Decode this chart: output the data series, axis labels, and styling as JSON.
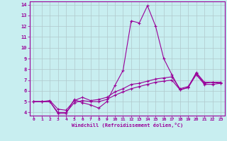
{
  "xlabel": "Windchill (Refroidissement éolien,°C)",
  "background_color": "#c8eef0",
  "line_color": "#990099",
  "grid_color": "#b0c8cc",
  "xlim": [
    -0.5,
    23.5
  ],
  "ylim": [
    3.7,
    14.3
  ],
  "xticks": [
    0,
    1,
    2,
    3,
    4,
    5,
    6,
    7,
    8,
    9,
    10,
    11,
    12,
    13,
    14,
    15,
    16,
    17,
    18,
    19,
    20,
    21,
    22,
    23
  ],
  "yticks": [
    4,
    5,
    6,
    7,
    8,
    9,
    10,
    11,
    12,
    13,
    14
  ],
  "x": [
    0,
    1,
    2,
    3,
    4,
    5,
    6,
    7,
    8,
    9,
    10,
    11,
    12,
    13,
    14,
    15,
    16,
    17,
    18,
    19,
    20,
    21,
    22,
    23
  ],
  "line1": [
    5.0,
    5.0,
    5.0,
    3.9,
    3.9,
    5.2,
    4.9,
    4.7,
    4.4,
    5.0,
    6.5,
    7.9,
    12.5,
    12.3,
    13.9,
    12.0,
    9.0,
    7.5,
    6.1,
    6.3,
    7.7,
    6.8,
    6.8,
    6.7
  ],
  "line2": [
    5.0,
    5.0,
    5.1,
    4.3,
    4.2,
    5.1,
    5.4,
    5.1,
    5.2,
    5.4,
    5.9,
    6.2,
    6.6,
    6.7,
    6.9,
    7.1,
    7.2,
    7.3,
    6.2,
    6.4,
    7.6,
    6.7,
    6.8,
    6.8
  ],
  "line3": [
    5.0,
    5.0,
    5.0,
    4.0,
    4.0,
    4.9,
    5.1,
    5.0,
    5.0,
    5.2,
    5.6,
    5.9,
    6.2,
    6.4,
    6.6,
    6.8,
    6.9,
    7.0,
    6.1,
    6.3,
    7.5,
    6.6,
    6.6,
    6.7
  ]
}
